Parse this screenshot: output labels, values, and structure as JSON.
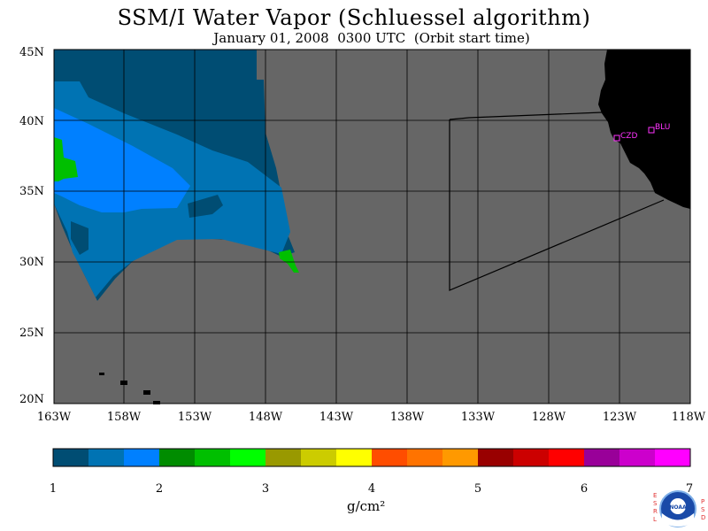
{
  "title": "SSM/I Water Vapor (Schluessel algorithm)",
  "subtitle": "January 01, 2008  0300 UTC  (Orbit start time)",
  "map": {
    "lat_labels": [
      "45N",
      "40N",
      "35N",
      "30N",
      "25N",
      "20N"
    ],
    "lon_labels": [
      "163W",
      "158W",
      "153W",
      "148W",
      "143W",
      "138W",
      "133W",
      "128W",
      "123W",
      "118W"
    ],
    "sites": [
      {
        "name": "CZD",
        "lat": 38.6,
        "lon": 123.2
      },
      {
        "name": "BLU",
        "lat": 39.3,
        "lon": 120.7
      }
    ],
    "colors": {
      "land": "#000000",
      "nodata": "#666666",
      "gridline": "#000000",
      "site": "#ff33ff"
    }
  },
  "colorbar": {
    "ticks": [
      "1",
      "2",
      "3",
      "4",
      "5",
      "6",
      "7"
    ],
    "units": "g/cm²",
    "colors": [
      "#004d73",
      "#0073b3",
      "#0080ff",
      "#008c00",
      "#00bf00",
      "#00ff00",
      "#999900",
      "#cccc00",
      "#ffff00",
      "#ff4d00",
      "#ff7300",
      "#ff9900",
      "#990000",
      "#cc0000",
      "#ff0000",
      "#990099",
      "#cc00cc",
      "#ff00ff"
    ]
  },
  "logo": {
    "left_letters": "ESRL",
    "right_letters": "PSD",
    "badge": "NOAA"
  }
}
